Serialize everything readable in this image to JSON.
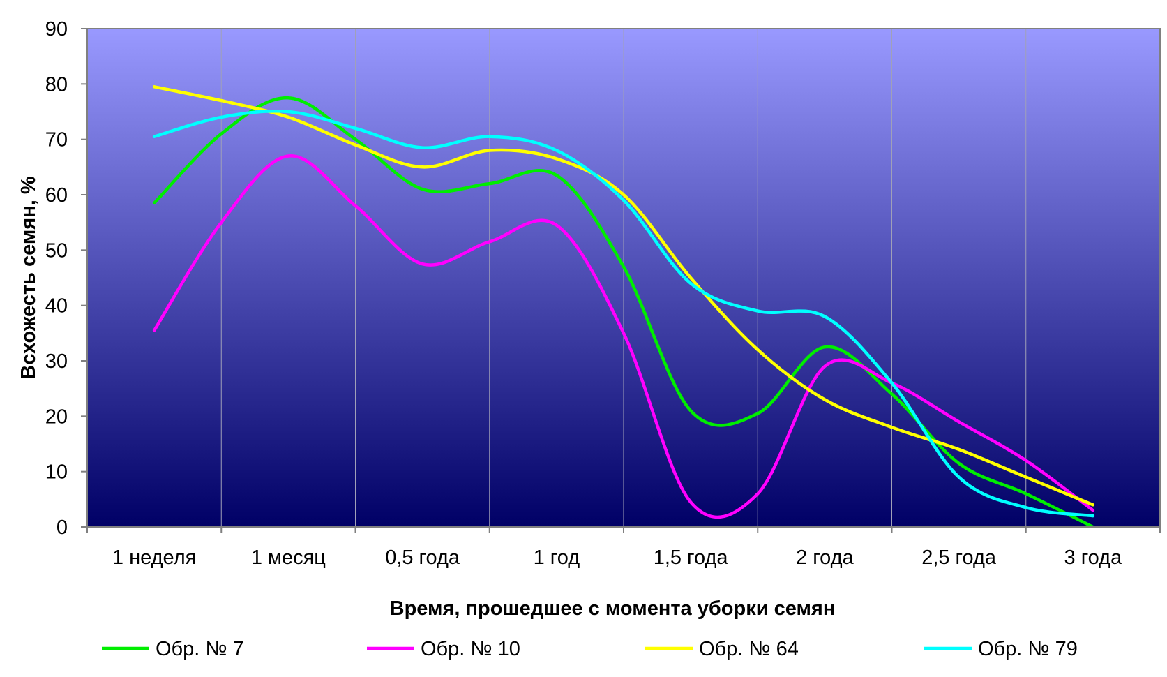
{
  "chart_data": {
    "type": "line",
    "title": "",
    "xlabel": "Время, прошедшее с момента уборки семян",
    "ylabel": "Всхожесть семян, %",
    "categories": [
      "1 неделя",
      "1 месяц",
      "0,5 года",
      "1 год",
      "1,5 года",
      "2 года",
      "2,5 года",
      "3 года"
    ],
    "x_positions": [
      0.5,
      1.5,
      2.5,
      3.5,
      4.5,
      5.5,
      6.5,
      7.5
    ],
    "ylim": [
      0,
      90
    ],
    "yticks": [
      "0",
      "10",
      "20",
      "30",
      "40",
      "50",
      "60",
      "70",
      "80",
      "90"
    ],
    "grid": "vertical",
    "legend_position": "bottom",
    "smooth": true,
    "background_gradient": [
      "#9999ff",
      "#000066"
    ],
    "series": [
      {
        "name": "Обр. № 7",
        "color": "#00ee00",
        "x": [
          0.5,
          1.0,
          1.5,
          2.0,
          2.5,
          3.0,
          3.5,
          4.0,
          4.5,
          5.0,
          5.5,
          6.0,
          6.5,
          7.0,
          7.5
        ],
        "values": [
          58.5,
          71,
          77.5,
          70,
          61,
          62,
          63.5,
          47,
          21,
          20.5,
          32.5,
          24,
          11.5,
          6,
          0
        ]
      },
      {
        "name": "Обр. № 10",
        "color": "#ff00ff",
        "x": [
          0.5,
          1.0,
          1.5,
          2.0,
          2.5,
          3.0,
          3.5,
          4.0,
          4.5,
          5.0,
          5.5,
          6.0,
          6.5,
          7.0,
          7.5
        ],
        "values": [
          35.5,
          55,
          67,
          58,
          47.5,
          51.5,
          54.5,
          35,
          4.5,
          6,
          29,
          26,
          19,
          12,
          3
        ]
      },
      {
        "name": "Обр. № 64",
        "color": "#ffff00",
        "x": [
          0.5,
          1.0,
          1.5,
          2.0,
          2.5,
          3.0,
          3.5,
          4.0,
          4.5,
          5.0,
          5.5,
          6.0,
          6.5,
          7.0,
          7.5
        ],
        "values": [
          79.5,
          77,
          74,
          69,
          65,
          68,
          66.5,
          60,
          45,
          32,
          23,
          18,
          14,
          9,
          4
        ]
      },
      {
        "name": "Обр. № 79",
        "color": "#00ffff",
        "x": [
          0.5,
          1.0,
          1.5,
          2.0,
          2.5,
          3.0,
          3.5,
          4.0,
          4.5,
          5.0,
          5.5,
          6.0,
          6.5,
          7.0,
          7.5
        ],
        "values": [
          70.5,
          74,
          75,
          72,
          68.5,
          70.5,
          68,
          59,
          44,
          39,
          38,
          26,
          9,
          3.5,
          2
        ]
      }
    ]
  }
}
